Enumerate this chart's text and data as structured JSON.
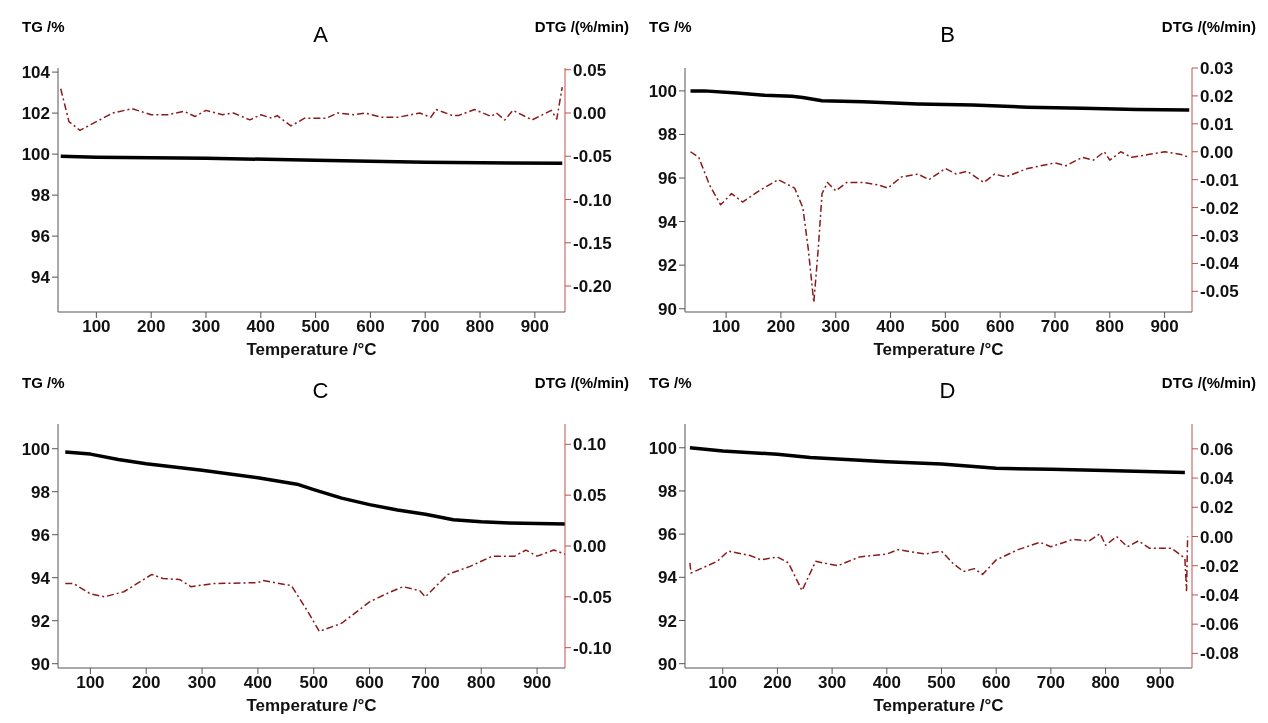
{
  "chart_data": [
    {
      "type": "line",
      "title": "A",
      "xlabel": "Temperature /°C",
      "ylabel": "TG /%",
      "y2label": "DTG /(%/min)",
      "legend": false,
      "grid": false,
      "marker": "none",
      "xlim": [
        30,
        955
      ],
      "xticks": [
        100,
        200,
        300,
        400,
        500,
        600,
        700,
        800,
        900
      ],
      "ylim": [
        92.3,
        104.2
      ],
      "yticks": [
        94,
        96,
        98,
        100,
        102,
        104
      ],
      "y2lim": [
        -0.23,
        0.052
      ],
      "y2ticks": [
        {
          "value": 0.05,
          "label": "0.05"
        },
        {
          "value": 0,
          "label": "0.00"
        },
        {
          "value": -0.05,
          "label": "-0.05"
        },
        {
          "value": -0.1,
          "label": "-0.10"
        },
        {
          "value": -0.15,
          "label": "-0.15"
        },
        {
          "value": -0.2,
          "label": "-0.20"
        }
      ],
      "series": [
        {
          "color": "#000000",
          "line_style": "solid",
          "x": [
            35,
            100,
            300,
            500,
            700,
            950
          ],
          "values": [
            99.9,
            99.85,
            99.8,
            99.7,
            99.6,
            99.55
          ]
        },
        {
          "color": "#8b1a1a",
          "line_style": "dashed",
          "axis": "y2",
          "x": [
            35,
            50,
            70,
            100,
            130,
            165,
            200,
            230,
            260,
            280,
            300,
            330,
            350,
            380,
            400,
            420,
            430,
            455,
            480,
            520,
            540,
            570,
            590,
            620,
            650,
            690,
            710,
            720,
            750,
            760,
            790,
            820,
            830,
            845,
            860,
            895,
            930,
            940,
            950
          ],
          "values": [
            0.028,
            -0.01,
            -0.02,
            -0.01,
            0,
            0.005,
            -0.002,
            -0.002,
            0.002,
            -0.004,
            0.003,
            -0.002,
            0,
            -0.008,
            -0.002,
            -0.006,
            -0.003,
            -0.015,
            -0.006,
            -0.006,
            0,
            -0.002,
            0,
            -0.005,
            -0.005,
            0,
            -0.005,
            0.004,
            -0.003,
            -0.003,
            0.004,
            -0.004,
            0,
            -0.008,
            0.003,
            -0.008,
            0.003,
            -0.007,
            0.03
          ]
        }
      ]
    },
    {
      "type": "line",
      "title": "B",
      "xlabel": "Temperature /°C",
      "ylabel": "TG /%",
      "y2label": "DTG /(%/min)",
      "legend": false,
      "grid": false,
      "marker": "none",
      "xlim": [
        25,
        950
      ],
      "xticks": [
        100,
        200,
        300,
        400,
        500,
        600,
        700,
        800,
        900
      ],
      "ylim": [
        89.85,
        101.05
      ],
      "yticks": [
        90,
        92,
        94,
        96,
        98,
        100
      ],
      "y2lim": [
        -0.0574,
        0.03
      ],
      "y2ticks": [
        {
          "value": 0.03,
          "label": "0.03"
        },
        {
          "value": 0.02,
          "label": "0.02"
        },
        {
          "value": 0.01,
          "label": "0.01"
        },
        {
          "value": 0,
          "label": "0.00"
        },
        {
          "value": -0.01,
          "label": "-0.01"
        },
        {
          "value": -0.02,
          "label": "-0.02"
        },
        {
          "value": -0.03,
          "label": "-0.03"
        },
        {
          "value": -0.04,
          "label": "-0.04"
        },
        {
          "value": -0.05,
          "label": "-0.05"
        }
      ],
      "series": [
        {
          "color": "#000000",
          "line_style": "solid",
          "x": [
            35,
            60,
            120,
            170,
            220,
            240,
            275,
            350,
            450,
            550,
            650,
            750,
            850,
            945
          ],
          "values": [
            100,
            100,
            99.9,
            99.8,
            99.75,
            99.7,
            99.55,
            99.5,
            99.4,
            99.35,
            99.25,
            99.2,
            99.15,
            99.12
          ]
        },
        {
          "color": "#8b1a1a",
          "line_style": "dashed",
          "axis": "y2",
          "x": [
            35,
            50,
            70,
            90,
            110,
            130,
            160,
            195,
            225,
            240,
            250,
            260,
            268,
            275,
            285,
            300,
            320,
            350,
            380,
            395,
            420,
            450,
            470,
            500,
            520,
            540,
            570,
            590,
            610,
            650,
            700,
            720,
            750,
            770,
            790,
            800,
            820,
            840,
            870,
            900,
            930,
            945
          ],
          "values": [
            0,
            -0.002,
            -0.012,
            -0.019,
            -0.015,
            -0.018,
            -0.014,
            -0.01,
            -0.013,
            -0.02,
            -0.035,
            -0.054,
            -0.035,
            -0.015,
            -0.011,
            -0.014,
            -0.011,
            -0.011,
            -0.012,
            -0.013,
            -0.009,
            -0.008,
            -0.01,
            -0.006,
            -0.008,
            -0.007,
            -0.011,
            -0.008,
            -0.009,
            -0.006,
            -0.004,
            -0.005,
            -0.002,
            -0.003,
            0,
            -0.003,
            0,
            -0.002,
            -0.001,
            0,
            -0.001,
            -0.002
          ]
        }
      ]
    },
    {
      "type": "line",
      "title": "C",
      "xlabel": "Temperature /°C",
      "ylabel": "TG /%",
      "y2label": "DTG /(%/min)",
      "legend": false,
      "grid": false,
      "marker": "none",
      "xlim": [
        42,
        950
      ],
      "xticks": [
        100,
        200,
        300,
        400,
        500,
        600,
        700,
        800,
        900
      ],
      "ylim": [
        89.8,
        101.15
      ],
      "yticks": [
        90,
        92,
        94,
        96,
        98,
        100
      ],
      "y2lim": [
        -0.12,
        0.12
      ],
      "y2ticks": [
        {
          "value": 0.1,
          "label": "0.10"
        },
        {
          "value": 0.05,
          "label": "0.05"
        },
        {
          "value": 0,
          "label": "0.00"
        },
        {
          "value": -0.05,
          "label": "-0.05"
        },
        {
          "value": -0.1,
          "label": "-0.10"
        }
      ],
      "series": [
        {
          "color": "#000000",
          "line_style": "solid",
          "x": [
            55,
            100,
            150,
            200,
            300,
            400,
            470,
            500,
            550,
            600,
            650,
            700,
            750,
            800,
            850,
            950
          ],
          "values": [
            99.85,
            99.75,
            99.5,
            99.3,
            99.0,
            98.65,
            98.35,
            98.1,
            97.7,
            97.4,
            97.15,
            96.95,
            96.7,
            96.6,
            96.55,
            96.5
          ]
        },
        {
          "color": "#8b1a1a",
          "line_style": "dashed",
          "axis": "y2",
          "x": [
            55,
            70,
            100,
            125,
            160,
            210,
            230,
            260,
            280,
            320,
            400,
            410,
            460,
            490,
            510,
            550,
            600,
            630,
            660,
            690,
            700,
            740,
            780,
            800,
            820,
            860,
            880,
            900,
            930,
            950
          ],
          "values": [
            -0.037,
            -0.037,
            -0.047,
            -0.05,
            -0.045,
            -0.028,
            -0.032,
            -0.033,
            -0.04,
            -0.037,
            -0.036,
            -0.034,
            -0.039,
            -0.065,
            -0.084,
            -0.076,
            -0.055,
            -0.047,
            -0.04,
            -0.044,
            -0.05,
            -0.028,
            -0.02,
            -0.015,
            -0.01,
            -0.01,
            -0.004,
            -0.01,
            -0.004,
            -0.008
          ]
        }
      ]
    },
    {
      "type": "line",
      "title": "D",
      "xlabel": "Temperature /°C",
      "ylabel": "TG /%",
      "y2label": "DTG /(%/min)",
      "legend": false,
      "grid": false,
      "marker": "none",
      "xlim": [
        31,
        958
      ],
      "xticks": [
        100,
        200,
        300,
        400,
        500,
        600,
        700,
        800,
        900
      ],
      "ylim": [
        89.8,
        101.1
      ],
      "yticks": [
        90,
        92,
        94,
        96,
        98,
        100
      ],
      "y2lim": [
        -0.09,
        0.077
      ],
      "y2ticks": [
        {
          "value": 0.06,
          "label": "0.06"
        },
        {
          "value": 0.04,
          "label": "0.04"
        },
        {
          "value": 0.02,
          "label": "0.02"
        },
        {
          "value": 0,
          "label": "0.00"
        },
        {
          "value": -0.02,
          "label": "-0.02"
        },
        {
          "value": -0.04,
          "label": "-0.04"
        },
        {
          "value": -0.06,
          "label": "-0.06"
        },
        {
          "value": -0.08,
          "label": "-0.08"
        }
      ],
      "series": [
        {
          "color": "#000000",
          "line_style": "solid",
          "x": [
            40,
            100,
            200,
            260,
            400,
            500,
            600,
            700,
            800,
            945
          ],
          "values": [
            100,
            99.85,
            99.7,
            99.55,
            99.35,
            99.25,
            99.05,
            99.0,
            98.95,
            98.85
          ]
        },
        {
          "color": "#8b1a1a",
          "line_style": "dashed",
          "axis": "y2",
          "x": [
            40,
            42,
            60,
            90,
            110,
            150,
            170,
            200,
            220,
            245,
            270,
            310,
            350,
            400,
            420,
            470,
            500,
            520,
            540,
            560,
            575,
            600,
            640,
            680,
            700,
            740,
            770,
            790,
            800,
            820,
            840,
            860,
            880,
            920,
            935,
            945,
            948,
            950
          ],
          "values": [
            -0.018,
            -0.025,
            -0.022,
            -0.017,
            -0.01,
            -0.013,
            -0.016,
            -0.014,
            -0.018,
            -0.037,
            -0.017,
            -0.02,
            -0.014,
            -0.012,
            -0.009,
            -0.012,
            -0.01,
            -0.018,
            -0.024,
            -0.022,
            -0.026,
            -0.016,
            -0.009,
            -0.004,
            -0.007,
            -0.002,
            -0.003,
            0.002,
            -0.006,
            0,
            -0.007,
            -0.003,
            -0.008,
            -0.008,
            -0.012,
            -0.015,
            -0.037,
            0
          ]
        }
      ]
    }
  ]
}
